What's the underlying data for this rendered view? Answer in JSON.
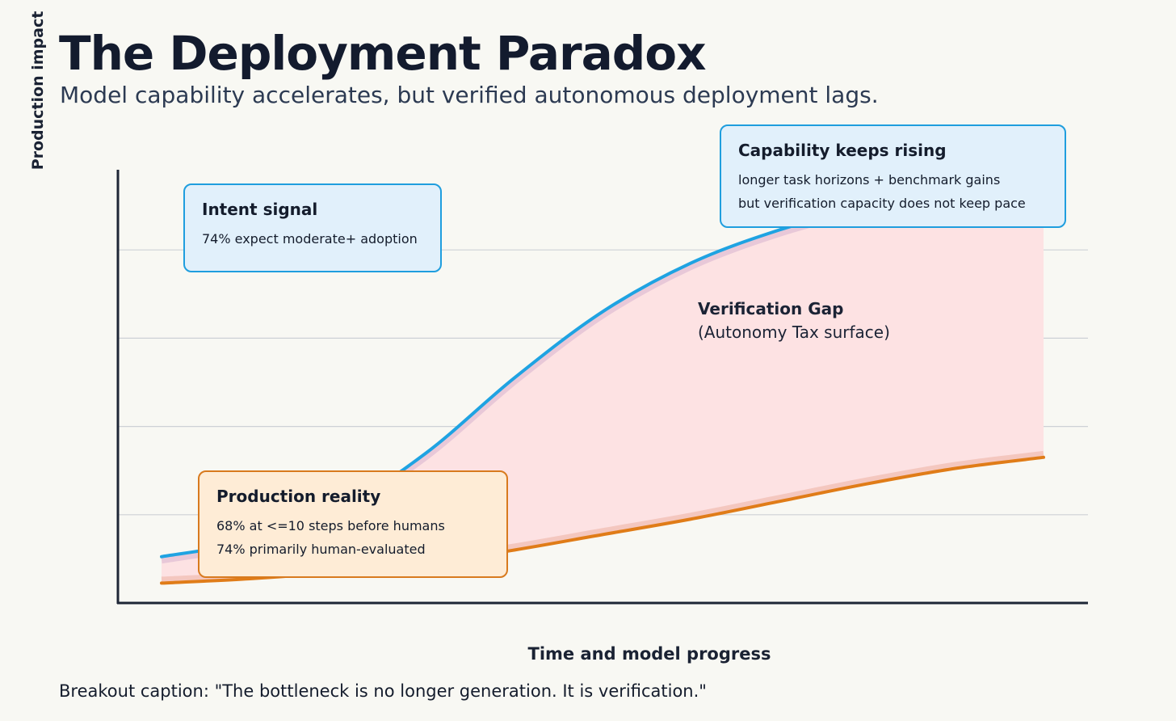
{
  "header": {
    "title": "The Deployment Paradox",
    "subtitle": "Model capability accelerates, but verified autonomous deployment lags."
  },
  "caption": "Breakout caption: \"The bottleneck is no longer generation. It is verification.\"",
  "colors": {
    "background": "#f8f8f3",
    "capability_line": "#1fa3e2",
    "production_line": "#e07c18",
    "gap_fill": "#fde2e3",
    "callout_blue": "#e1f0fb",
    "callout_orange": "#feecd6"
  },
  "chart_data": {
    "type": "area",
    "xlabel": "Time and model progress",
    "ylabel": "Production impact",
    "xlim": [
      0,
      100
    ],
    "ylim": [
      0,
      100
    ],
    "grid": true,
    "gridlines_y": [
      20,
      40,
      60,
      80
    ],
    "x": [
      0,
      10,
      20,
      30,
      40,
      50,
      60,
      70,
      80,
      90,
      100
    ],
    "series": [
      {
        "values": [
          10.5,
          14,
          21,
          34,
          51,
          66,
          77,
          84.5,
          90,
          95,
          100
        ],
        "color": "#1fa3e2"
      },
      {
        "values": [
          4.5,
          5.5,
          7,
          9,
          12,
          15.5,
          19,
          23,
          27,
          30.5,
          33
        ],
        "color": "#e07c18"
      }
    ],
    "annotations": {
      "gap": {
        "title": "Verification Gap",
        "subtitle": "(Autonomy Tax surface)"
      },
      "intent": {
        "title": "Intent signal",
        "lines": [
          "74% expect moderate+ adoption"
        ]
      },
      "capability": {
        "title": "Capability keeps rising",
        "lines": [
          "longer task horizons + benchmark gains",
          "but verification capacity does not keep pace"
        ]
      },
      "production": {
        "title": "Production reality",
        "lines": [
          "68% at <=10 steps before humans",
          "74% primarily human-evaluated"
        ]
      }
    }
  }
}
